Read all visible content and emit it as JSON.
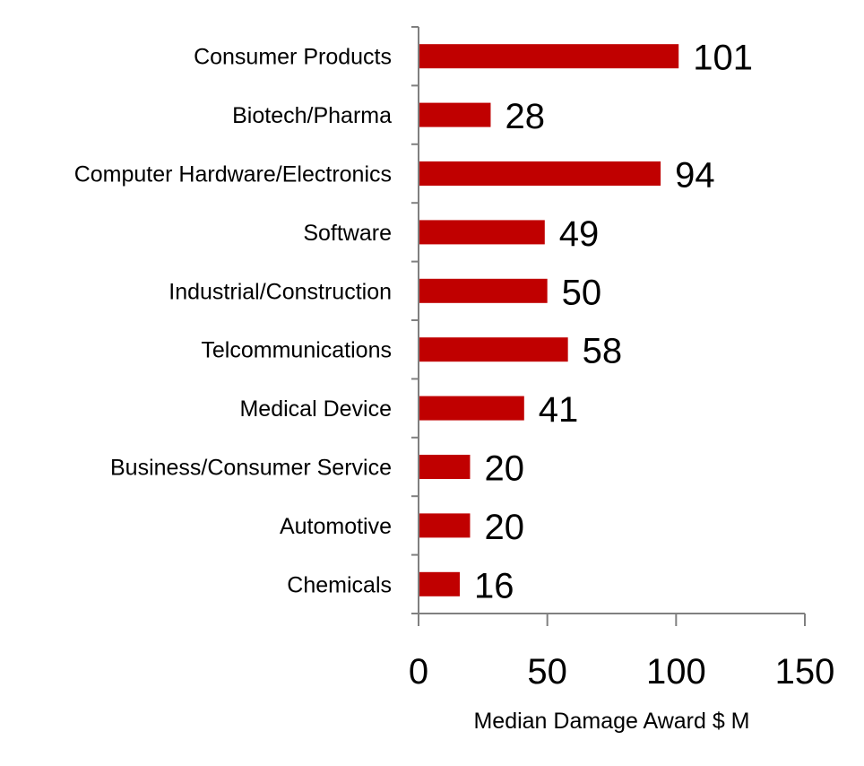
{
  "chart_data": {
    "type": "bar",
    "orientation": "horizontal",
    "categories": [
      "Consumer Products",
      "Biotech/Pharma",
      "Computer Hardware/Electronics",
      "Software",
      "Industrial/Construction",
      "Telcommunications",
      "Medical Device",
      "Business/Consumer Service",
      "Automotive",
      "Chemicals"
    ],
    "values": [
      101,
      28,
      94,
      49,
      50,
      58,
      41,
      20,
      20,
      16
    ],
    "xlabel": "Median Damage Award $ M",
    "xlim": [
      0,
      150
    ],
    "xticks": [
      0,
      50,
      100,
      150
    ],
    "grid": false,
    "data_labels": true,
    "bar_color": "#C00000"
  }
}
